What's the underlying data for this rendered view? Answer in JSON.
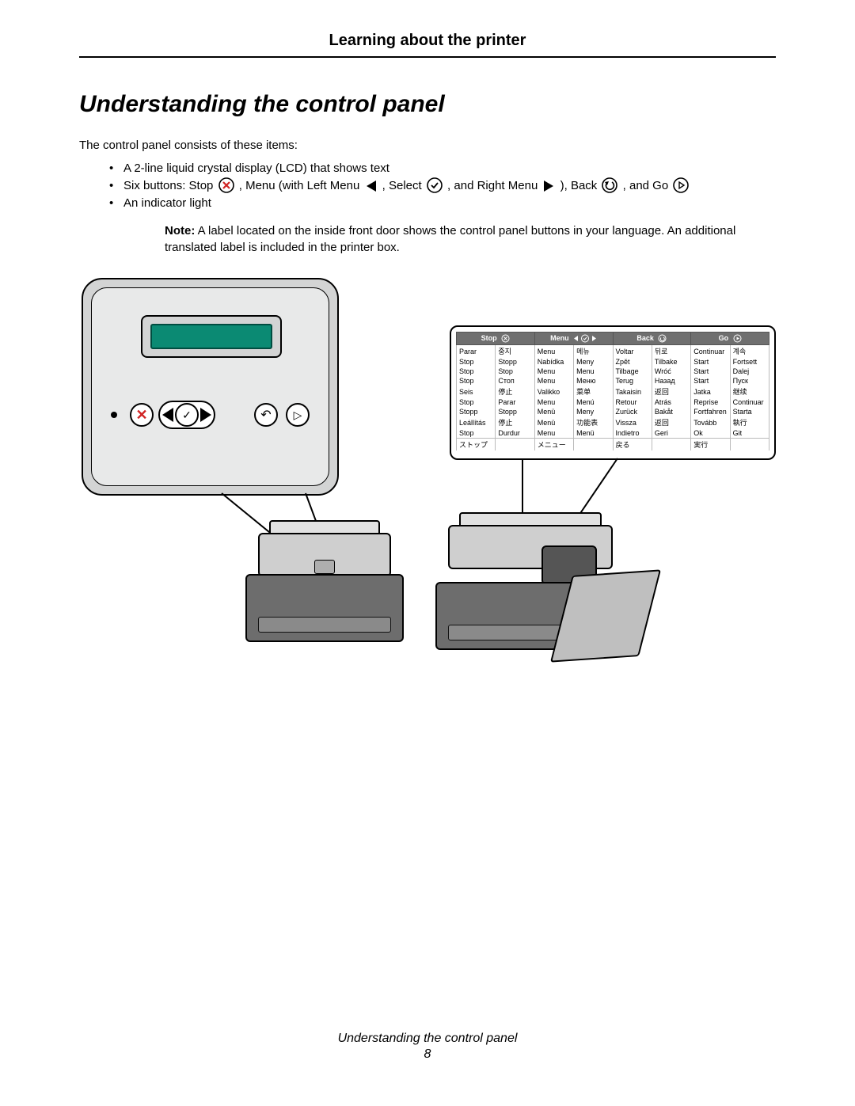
{
  "chapter_title": "Learning about the printer",
  "section_title": "Understanding the control panel",
  "intro": "The control panel consists of these items:",
  "bullets": {
    "b1": "A 2-line liquid crystal display (LCD) that shows text",
    "b2a": "Six buttons: Stop ",
    "b2b": ", Menu (with Left Menu",
    "b2c": " , Select ",
    "b2d": ", and Right Menu ",
    "b2e": " ), Back ",
    "b2f": ", and Go ",
    "b3": "An indicator light"
  },
  "note_label": "Note:",
  "note_text": " A label located on the inside front door shows the control panel buttons in your language. An additional translated label is included in the printer box.",
  "label_headers": [
    "Stop",
    "Menu",
    "Back",
    "Go"
  ],
  "label_rows": [
    [
      "Parar",
      "중지",
      "Menu",
      "메뉴",
      "Voltar",
      "뒤로",
      "Continuar",
      "계속"
    ],
    [
      "Stop",
      "Stopp",
      "Nabídka",
      "Meny",
      "Zpět",
      "Tilbake",
      "Start",
      "Fortsett"
    ],
    [
      "Stop",
      "Stop",
      "Menu",
      "Menu",
      "Tilbage",
      "Wróć",
      "Start",
      "Dalej"
    ],
    [
      "Stop",
      "Стоп",
      "Menu",
      "Меню",
      "Terug",
      "Назад",
      "Start",
      "Пуск"
    ],
    [
      "Seis",
      "停止",
      "Valikko",
      "菜单",
      "Takaisin",
      "返回",
      "Jatka",
      "继续"
    ],
    [
      "Stop",
      "Parar",
      "Menu",
      "Menú",
      "Retour",
      "Atrás",
      "Reprise",
      "Continuar"
    ],
    [
      "Stopp",
      "Stopp",
      "Menü",
      "Meny",
      "Zurück",
      "Bakåt",
      "Fortfahren",
      "Starta"
    ],
    [
      "Leállítás",
      "停止",
      "Menü",
      "功能表",
      "Vissza",
      "返回",
      "Tovább",
      "執行"
    ],
    [
      "Stop",
      "Durdur",
      "Menu",
      "Menü",
      "Indietro",
      "Geri",
      "Ok",
      "Git"
    ],
    [
      "ストップ",
      "",
      "メニュー",
      "",
      "戻る",
      "",
      "実行",
      ""
    ]
  ],
  "footer_title": "Understanding the control panel",
  "page_number": "8",
  "colors": {
    "lcd_bg": "#0b8a73",
    "panel_bg": "#d3d4d4",
    "panel_inner": "#e8e9e9",
    "label_header_bg": "#6f6f6f",
    "stop_red": "#d02424"
  }
}
